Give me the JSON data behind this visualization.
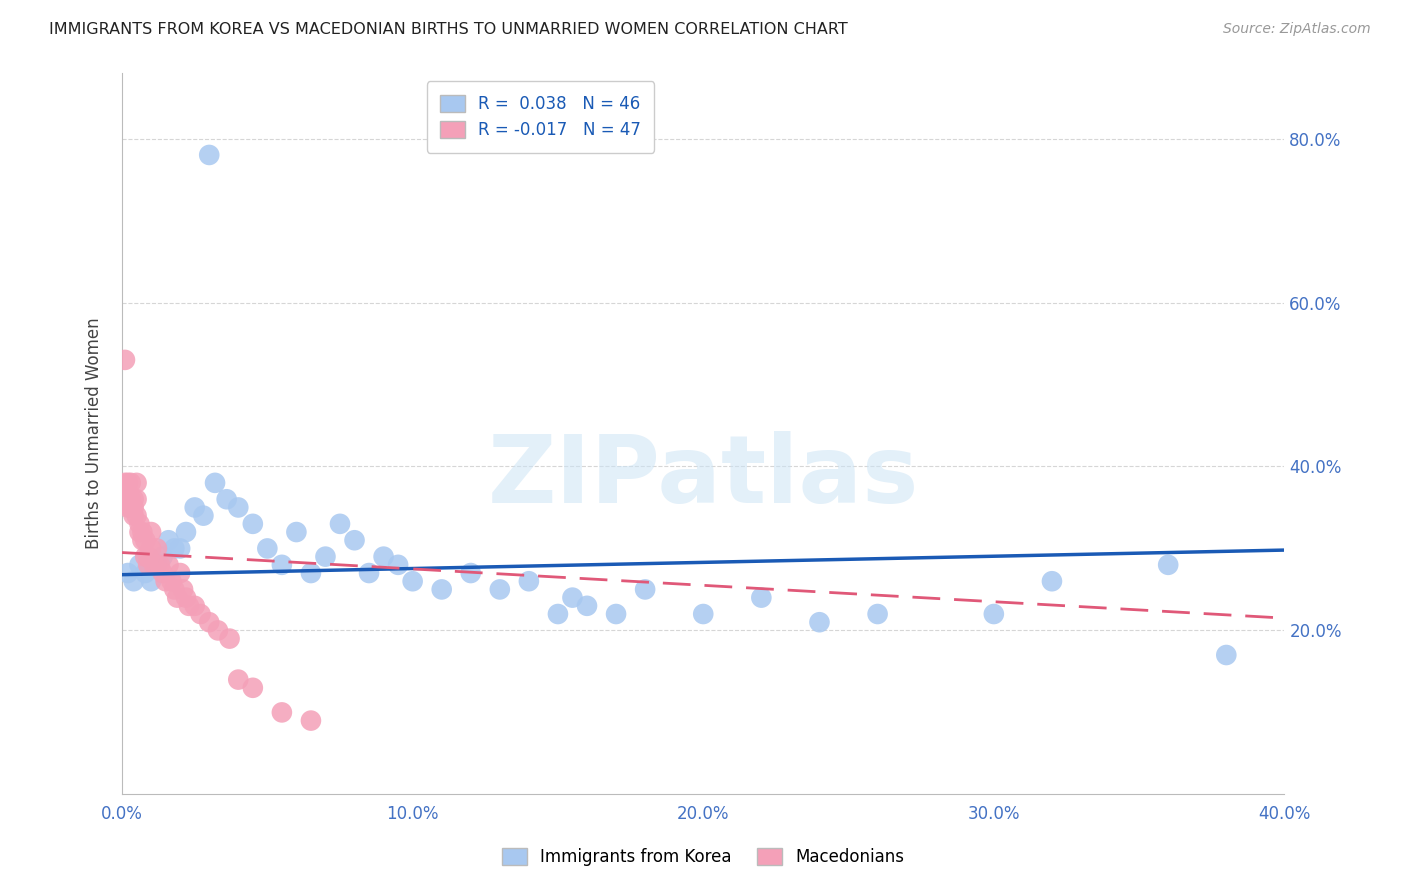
{
  "title": "IMMIGRANTS FROM KOREA VS MACEDONIAN BIRTHS TO UNMARRIED WOMEN CORRELATION CHART",
  "source": "Source: ZipAtlas.com",
  "ylabel": "Births to Unmarried Women",
  "xlabel_korea": "Immigrants from Korea",
  "xlabel_macedonian": "Macedonians",
  "r_korea": 0.038,
  "n_korea": 46,
  "r_macedonian": -0.017,
  "n_macedonian": 47,
  "xlim": [
    0.0,
    0.4
  ],
  "ylim": [
    0.0,
    0.88
  ],
  "yticks": [
    0.2,
    0.4,
    0.6,
    0.8
  ],
  "xticks": [
    0.0,
    0.1,
    0.2,
    0.3,
    0.4
  ],
  "watermark": "ZIPatlas",
  "color_korea": "#a8c8f0",
  "color_macedonian": "#f4a0b8",
  "line_color_korea": "#1a5ab5",
  "line_color_macedonian": "#e05878",
  "korea_x": [
    0.03,
    0.002,
    0.004,
    0.006,
    0.008,
    0.01,
    0.012,
    0.014,
    0.016,
    0.018,
    0.02,
    0.022,
    0.025,
    0.028,
    0.032,
    0.036,
    0.04,
    0.045,
    0.05,
    0.055,
    0.06,
    0.065,
    0.07,
    0.075,
    0.08,
    0.085,
    0.09,
    0.095,
    0.1,
    0.11,
    0.12,
    0.13,
    0.14,
    0.15,
    0.155,
    0.16,
    0.17,
    0.18,
    0.2,
    0.22,
    0.24,
    0.26,
    0.3,
    0.32,
    0.36,
    0.38
  ],
  "korea_y": [
    0.78,
    0.27,
    0.26,
    0.28,
    0.27,
    0.26,
    0.28,
    0.29,
    0.31,
    0.3,
    0.3,
    0.32,
    0.35,
    0.34,
    0.38,
    0.36,
    0.35,
    0.33,
    0.3,
    0.28,
    0.32,
    0.27,
    0.29,
    0.33,
    0.31,
    0.27,
    0.29,
    0.28,
    0.26,
    0.25,
    0.27,
    0.25,
    0.26,
    0.22,
    0.24,
    0.23,
    0.22,
    0.25,
    0.22,
    0.24,
    0.21,
    0.22,
    0.22,
    0.26,
    0.28,
    0.17
  ],
  "korea_y_outliers_override": [],
  "macedonian_x": [
    0.001,
    0.001,
    0.001,
    0.002,
    0.002,
    0.002,
    0.003,
    0.003,
    0.003,
    0.004,
    0.004,
    0.004,
    0.005,
    0.005,
    0.005,
    0.006,
    0.006,
    0.007,
    0.007,
    0.008,
    0.008,
    0.009,
    0.009,
    0.01,
    0.01,
    0.011,
    0.012,
    0.013,
    0.014,
    0.015,
    0.016,
    0.017,
    0.018,
    0.019,
    0.02,
    0.021,
    0.022,
    0.023,
    0.025,
    0.027,
    0.03,
    0.033,
    0.037,
    0.04,
    0.045,
    0.055,
    0.065
  ],
  "macedonian_y": [
    0.53,
    0.38,
    0.37,
    0.36,
    0.38,
    0.35,
    0.36,
    0.38,
    0.35,
    0.36,
    0.35,
    0.34,
    0.38,
    0.36,
    0.34,
    0.33,
    0.32,
    0.32,
    0.31,
    0.31,
    0.29,
    0.29,
    0.28,
    0.32,
    0.3,
    0.28,
    0.3,
    0.28,
    0.27,
    0.26,
    0.28,
    0.26,
    0.25,
    0.24,
    0.27,
    0.25,
    0.24,
    0.23,
    0.23,
    0.22,
    0.21,
    0.2,
    0.19,
    0.14,
    0.13,
    0.1,
    0.09
  ],
  "korea_line_x": [
    0.0,
    0.4
  ],
  "korea_line_y": [
    0.268,
    0.298
  ],
  "mac_line_x": [
    0.0,
    0.4
  ],
  "mac_line_y": [
    0.295,
    0.215
  ]
}
